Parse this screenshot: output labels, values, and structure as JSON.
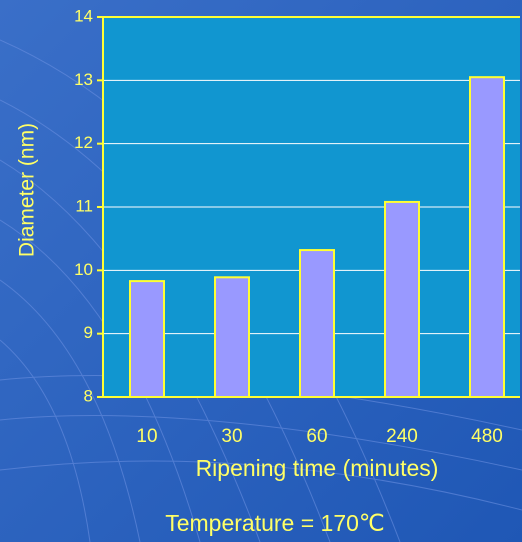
{
  "chart_data": {
    "type": "bar",
    "x_label": "Ripening time (minutes)",
    "y_label": "Diameter (nm)",
    "annotation": "Temperature = 170℃",
    "categories": [
      "10",
      "30",
      "60",
      "240",
      "480"
    ],
    "values": [
      9.83,
      9.89,
      10.32,
      11.08,
      13.05
    ],
    "color": "#9999ff",
    "ylim": [
      8,
      14
    ],
    "yticks": [
      8,
      9,
      10,
      11,
      12,
      13,
      14
    ],
    "grid": true
  }
}
